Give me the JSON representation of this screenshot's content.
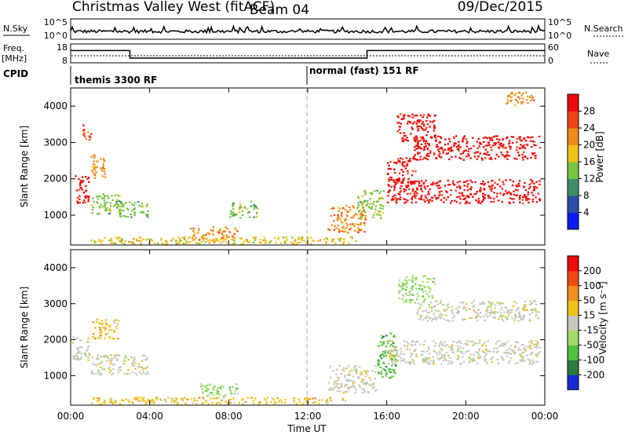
{
  "header": {
    "title": "Christmas Valley West (fitACF)",
    "beam": "Beam 04",
    "date": "09/Dec/2015"
  },
  "nsky_panel": {
    "left_label": "N.Sky",
    "right_label": "N.Search",
    "tick_top": "10^5",
    "tick_bottom": "10^0"
  },
  "freq_panel": {
    "left_label_line1": "Freq.",
    "left_label_line2": "[MHz]",
    "left_ticks": [
      "18",
      "8"
    ],
    "right_label": "Nave",
    "right_ticks": [
      "60",
      "0"
    ]
  },
  "cpid_panel": {
    "label": "CPID",
    "segment1": "themis 3300 RF",
    "segment2": "normal (fast) 151 RF"
  },
  "chart_data": [
    {
      "type": "line",
      "name": "frequency",
      "x_hours": [
        0,
        3,
        3,
        15,
        15,
        24
      ],
      "y": [
        14.5,
        14.5,
        10.5,
        10.5,
        14.5,
        14.5
      ],
      "ylim": [
        8,
        18
      ]
    },
    {
      "type": "heatmap",
      "name": "power",
      "xlabel": "",
      "ylabel": "Slant Range [km]",
      "x_ticks": [
        "00:00",
        "04:00",
        "08:00",
        "12:00",
        "16:00",
        "20:00",
        "00:00"
      ],
      "y_ticks": [
        "1000",
        "2000",
        "3000",
        "4000"
      ],
      "colorbar_label": "Power [dB]",
      "colorbar_ticks": [
        "4",
        "8",
        "12",
        "16",
        "20",
        "24",
        "28"
      ],
      "colorbar_colors": [
        "#0a1cf0",
        "#2b4ea8",
        "#3d8f6a",
        "#77c742",
        "#f0c21c",
        "#f08a1c",
        "#f04414",
        "#ee0a0a"
      ],
      "regions": [
        {
          "t0": 0.2,
          "t1": 1.0,
          "r0": 1300,
          "r1": 2100,
          "level": 7
        },
        {
          "t0": 0.6,
          "t1": 1.1,
          "r0": 3000,
          "r1": 3500,
          "level": 6
        },
        {
          "t0": 1.0,
          "t1": 1.8,
          "r0": 2000,
          "r1": 2700,
          "level": 5
        },
        {
          "t0": 1.0,
          "t1": 2.6,
          "r0": 1000,
          "r1": 1600,
          "level": 3
        },
        {
          "t0": 2.4,
          "t1": 4.0,
          "r0": 900,
          "r1": 1400,
          "level": 3
        },
        {
          "t0": 6.0,
          "t1": 8.5,
          "r0": 300,
          "r1": 700,
          "level": 5
        },
        {
          "t0": 8.0,
          "t1": 9.5,
          "r0": 900,
          "r1": 1400,
          "level": 3
        },
        {
          "t0": 1.0,
          "t1": 14.5,
          "r0": 180,
          "r1": 420,
          "level": 4
        },
        {
          "t0": 13.0,
          "t1": 15.0,
          "r0": 500,
          "r1": 1300,
          "level": 5
        },
        {
          "t0": 14.5,
          "t1": 15.9,
          "r0": 900,
          "r1": 1700,
          "level": 3
        },
        {
          "t0": 16.0,
          "t1": 23.8,
          "r0": 1300,
          "r1": 2000,
          "level": 7
        },
        {
          "t0": 16.0,
          "t1": 17.5,
          "r0": 1900,
          "r1": 2600,
          "level": 7
        },
        {
          "t0": 17.3,
          "t1": 23.8,
          "r0": 2500,
          "r1": 3200,
          "level": 7
        },
        {
          "t0": 16.5,
          "t1": 18.5,
          "r0": 3000,
          "r1": 3800,
          "level": 7
        },
        {
          "t0": 22.0,
          "t1": 23.5,
          "r0": 4000,
          "r1": 4400,
          "level": 5
        }
      ]
    },
    {
      "type": "heatmap",
      "name": "velocity",
      "xlabel": "Time UT",
      "ylabel": "Slant Range [km]",
      "x_ticks": [
        "00:00",
        "04:00",
        "08:00",
        "12:00",
        "16:00",
        "20:00",
        "00:00"
      ],
      "y_ticks": [
        "1000",
        "2000",
        "3000",
        "4000"
      ],
      "colorbar_label": "Velocity [m s⁻¹]",
      "colorbar_ticks": [
        "200",
        "100",
        "50",
        "15",
        "-15",
        "-50",
        "-100",
        "-200"
      ],
      "colorbar_colors": [
        "#1a2ad8",
        "#2d7a40",
        "#4cc33c",
        "#9fdc6a",
        "#c8c8c0",
        "#f0c21c",
        "#f0901c",
        "#f04a14",
        "#ee0a0a"
      ],
      "regions": [
        {
          "t0": 0.0,
          "t1": 1.0,
          "r0": 1400,
          "r1": 2100,
          "level": 4
        },
        {
          "t0": 1.0,
          "t1": 4.0,
          "r0": 1000,
          "r1": 1600,
          "level": 4
        },
        {
          "t0": 1.0,
          "t1": 2.5,
          "r0": 2000,
          "r1": 2600,
          "level": 5
        },
        {
          "t0": 1.0,
          "t1": 14.0,
          "r0": 180,
          "r1": 420,
          "level": 5
        },
        {
          "t0": 6.5,
          "t1": 8.5,
          "r0": 400,
          "r1": 800,
          "level": 3
        },
        {
          "t0": 13.0,
          "t1": 15.5,
          "r0": 500,
          "r1": 1300,
          "level": 4
        },
        {
          "t0": 15.5,
          "t1": 16.5,
          "r0": 900,
          "r1": 2200,
          "level": 2
        },
        {
          "t0": 16.0,
          "t1": 23.8,
          "r0": 1300,
          "r1": 2000,
          "level": 4
        },
        {
          "t0": 17.5,
          "t1": 23.8,
          "r0": 2500,
          "r1": 3100,
          "level": 4
        },
        {
          "t0": 16.5,
          "t1": 18.5,
          "r0": 3000,
          "r1": 3800,
          "level": 3
        }
      ]
    }
  ]
}
